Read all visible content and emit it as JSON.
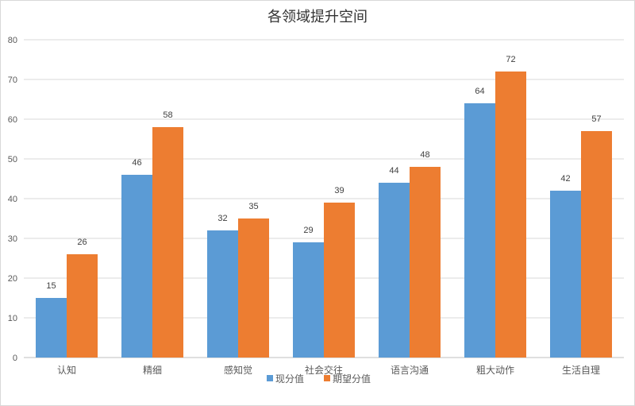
{
  "chart_data": {
    "type": "bar",
    "title": "各领域提升空间",
    "categories": [
      "认知",
      "精细",
      "感知觉",
      "社会交往",
      "语言沟通",
      "粗大动作",
      "生活自理"
    ],
    "series": [
      {
        "name": "现分值",
        "color": "#5b9bd5",
        "values": [
          15,
          46,
          32,
          29,
          44,
          64,
          42
        ]
      },
      {
        "name": "期望分值",
        "color": "#ed7d31",
        "values": [
          26,
          58,
          35,
          39,
          48,
          72,
          57
        ]
      }
    ],
    "ylim": [
      0,
      80
    ],
    "yticks": [
      0,
      10,
      20,
      30,
      40,
      50,
      60,
      70,
      80
    ],
    "grid": true,
    "legend": "bottom",
    "xlabel": "",
    "ylabel": ""
  }
}
